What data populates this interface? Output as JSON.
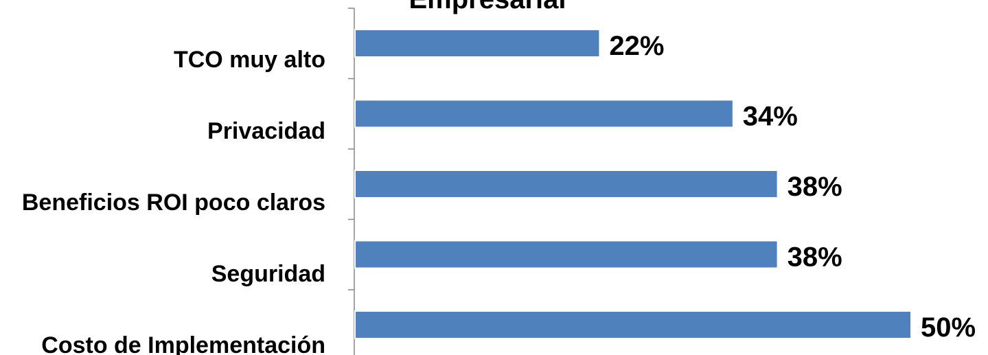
{
  "chart_data": {
    "type": "bar",
    "orientation": "horizontal",
    "title": "Empresarial",
    "categories": [
      "TCO muy alto",
      "Privacidad",
      "Beneficios ROI poco claros",
      "Seguridad",
      "Costo de Implementación"
    ],
    "values": [
      22,
      34,
      38,
      38,
      50
    ],
    "data_labels": [
      "22%",
      "34%",
      "38%",
      "38%",
      "50%"
    ],
    "xlim": [
      0,
      50
    ],
    "grid": false,
    "legend": "none",
    "bar_color": "#4f81bd"
  }
}
